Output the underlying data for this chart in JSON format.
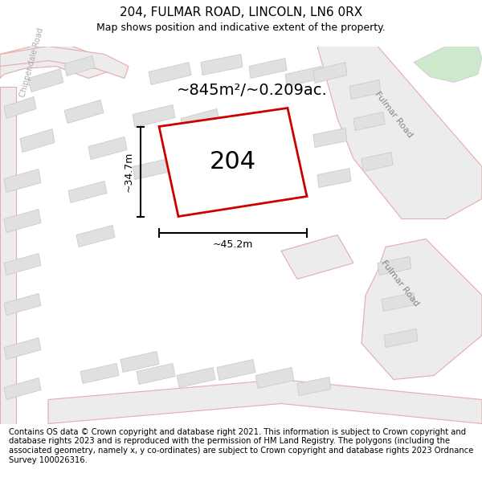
{
  "title": "204, FULMAR ROAD, LINCOLN, LN6 0RX",
  "subtitle": "Map shows position and indicative extent of the property.",
  "footer": "Contains OS data © Crown copyright and database right 2021. This information is subject to Crown copyright and database rights 2023 and is reproduced with the permission of HM Land Registry. The polygons (including the associated geometry, namely x, y co-ordinates) are subject to Crown copyright and database rights 2023 Ordnance Survey 100026316.",
  "area_label": "~845m²/~0.209ac.",
  "property_label": "204",
  "dim_width": "~45.2m",
  "dim_height": "~34.7m",
  "road_label_fulmar_upper": "Fulmar Road",
  "road_label_fulmar_lower": "Fulmar Road",
  "road_label_chippendale": "Chippendale Road",
  "bg_color": "#ffffff",
  "map_bg": "#ffffff",
  "road_fill": "#ececec",
  "road_stroke": "#e8aaaa",
  "building_fill": "#e0e0e0",
  "building_stroke": "#cccccc",
  "property_stroke": "#cc0000",
  "property_fill": "#ffffff",
  "green_fill": "#cde8cd",
  "dim_color": "#000000",
  "label_color": "#888888",
  "title_fontsize": 11,
  "subtitle_fontsize": 9,
  "footer_fontsize": 7.2,
  "area_fontsize": 14,
  "property_fontsize": 22,
  "dim_fontsize": 9,
  "road_fontsize": 8
}
